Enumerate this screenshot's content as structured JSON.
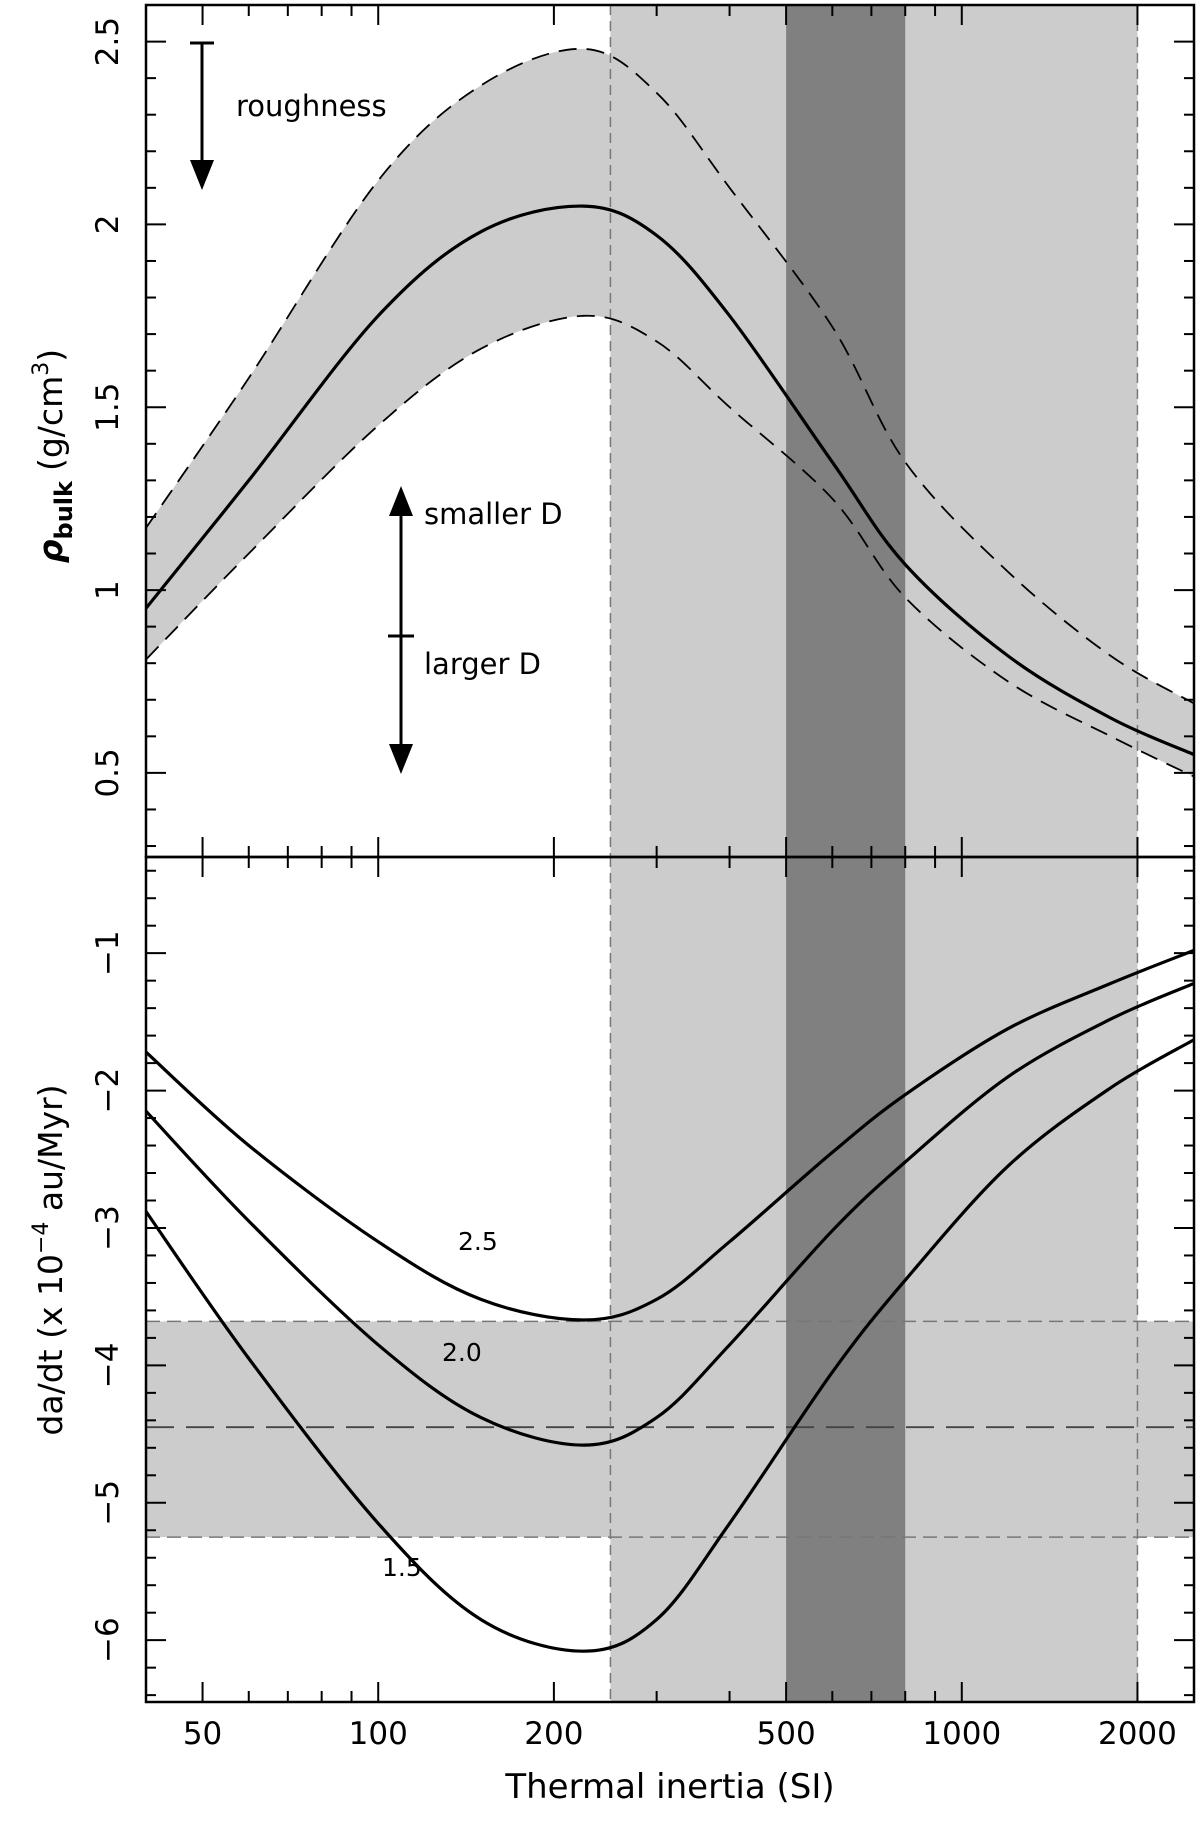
{
  "chart_data": [
    {
      "panel": "top",
      "type": "line",
      "xlabel": "",
      "ylabel_main": "ρ",
      "ylabel_sub": "bulk",
      "ylabel_unit": "(g/cm",
      "ylabel_sup": "3",
      "ylabel_close": ")",
      "xscale": "log",
      "xlim": [
        40,
        2500
      ],
      "ylim": [
        0.27,
        2.6
      ],
      "yticks": [
        0.5,
        1,
        1.5,
        2,
        2.5
      ],
      "ytick_labels": [
        "0.5",
        "1",
        "1.5",
        "2",
        "2.5"
      ],
      "series": [
        {
          "style": "solid-thick",
          "x": [
            40,
            60,
            100,
            150,
            225,
            300,
            400,
            600,
            800,
            1200,
            1800,
            2500
          ],
          "values": [
            0.95,
            1.3,
            1.75,
            1.98,
            2.05,
            1.97,
            1.75,
            1.35,
            1.07,
            0.82,
            0.65,
            0.55
          ]
        },
        {
          "style": "dashed",
          "x": [
            40,
            60,
            100,
            150,
            225,
            300,
            400,
            600,
            800,
            1200,
            1800,
            2500
          ],
          "values": [
            1.17,
            1.58,
            2.12,
            2.38,
            2.48,
            2.36,
            2.1,
            1.72,
            1.35,
            1.05,
            0.82,
            0.69
          ]
        },
        {
          "style": "dashed",
          "x": [
            40,
            60,
            100,
            150,
            225,
            300,
            400,
            600,
            800,
            1200,
            1800,
            2500
          ],
          "values": [
            0.81,
            1.1,
            1.45,
            1.66,
            1.75,
            1.68,
            1.5,
            1.25,
            0.98,
            0.75,
            0.6,
            0.49
          ]
        }
      ],
      "annotations": [
        {
          "text": "roughness"
        },
        {
          "text": "smaller D"
        },
        {
          "text": "larger D"
        }
      ]
    },
    {
      "panel": "bottom",
      "type": "line",
      "xlabel": "Thermal inertia (SI)",
      "ylabel_main": "da/dt (x 10",
      "ylabel_sup": "−4",
      "ylabel_close": " au/Myr)",
      "xscale": "log",
      "xlim": [
        40,
        2500
      ],
      "ylim": [
        -6.45,
        -0.3
      ],
      "xticks": [
        50,
        100,
        200,
        500,
        1000,
        2000
      ],
      "xtick_labels": [
        "50",
        "100",
        "200",
        "500",
        "1000",
        "2000"
      ],
      "yticks": [
        -1,
        -2,
        -3,
        -4,
        -5,
        -6
      ],
      "ytick_labels": [
        "−1",
        "−2",
        "−3",
        "−4",
        "−5",
        "−6"
      ],
      "series": [
        {
          "name": "2.5",
          "x": [
            40,
            60,
            100,
            150,
            225,
            300,
            400,
            600,
            800,
            1200,
            1800,
            2500
          ],
          "values": [
            -1.72,
            -2.4,
            -3.1,
            -3.52,
            -3.67,
            -3.52,
            -3.1,
            -2.45,
            -2.03,
            -1.55,
            -1.22,
            -0.98
          ]
        },
        {
          "name": "2.0",
          "x": [
            40,
            60,
            100,
            150,
            225,
            300,
            400,
            600,
            800,
            1200,
            1800,
            2500
          ],
          "values": [
            -2.15,
            -2.95,
            -3.85,
            -4.38,
            -4.58,
            -4.38,
            -3.85,
            -3.02,
            -2.52,
            -1.9,
            -1.48,
            -1.22
          ]
        },
        {
          "name": "1.5",
          "x": [
            40,
            60,
            100,
            150,
            225,
            300,
            400,
            600,
            800,
            1200,
            1800,
            2500
          ],
          "values": [
            -2.88,
            -3.95,
            -5.15,
            -5.85,
            -6.08,
            -5.85,
            -5.15,
            -4.05,
            -3.38,
            -2.55,
            -1.98,
            -1.63
          ]
        }
      ],
      "horizontal_band": [
        -5.25,
        -3.68
      ],
      "horizontal_center": -4.45
    }
  ],
  "shaded_regions": {
    "light_x": [
      250,
      2000
    ],
    "dark_x": [
      500,
      800
    ]
  },
  "colors": {
    "light_gray": "#cccccc",
    "dark_gray": "#808080",
    "line": "#000000"
  }
}
